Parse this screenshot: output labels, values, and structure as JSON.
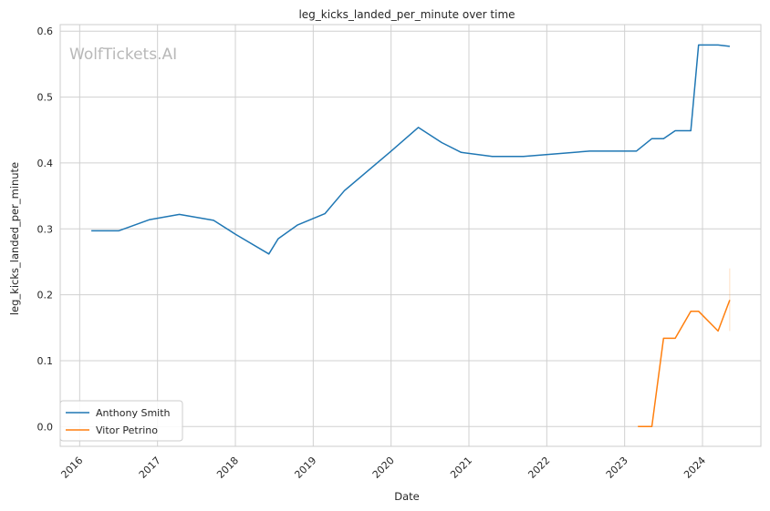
{
  "chart_data": {
    "type": "line",
    "title": "leg_kicks_landed_per_minute over time",
    "xlabel": "Date",
    "ylabel": "leg_kicks_landed_per_minute",
    "watermark": "WolfTickets.AI",
    "xlim": [
      2015.75,
      2024.75
    ],
    "ylim": [
      -0.03,
      0.61
    ],
    "x_ticks": [
      2016,
      2017,
      2018,
      2019,
      2020,
      2021,
      2022,
      2023,
      2024
    ],
    "x_tick_labels": [
      "2016",
      "2017",
      "2018",
      "2019",
      "2020",
      "2021",
      "2022",
      "2023",
      "2024"
    ],
    "y_ticks": [
      0.0,
      0.1,
      0.2,
      0.3,
      0.4,
      0.5,
      0.6
    ],
    "y_tick_labels": [
      "0.0",
      "0.1",
      "0.2",
      "0.3",
      "0.4",
      "0.5",
      "0.6"
    ],
    "grid": true,
    "legend_position": "bottom-left",
    "series": [
      {
        "name": "Anthony Smith",
        "color": "#1f77b4",
        "points": [
          [
            2016.15,
            0.297
          ],
          [
            2016.5,
            0.297
          ],
          [
            2016.9,
            0.314
          ],
          [
            2017.28,
            0.322
          ],
          [
            2017.72,
            0.313
          ],
          [
            2018.0,
            0.292
          ],
          [
            2018.43,
            0.262
          ],
          [
            2018.55,
            0.285
          ],
          [
            2018.8,
            0.306
          ],
          [
            2019.15,
            0.323
          ],
          [
            2019.4,
            0.358
          ],
          [
            2020.0,
            0.418
          ],
          [
            2020.35,
            0.454
          ],
          [
            2020.65,
            0.431
          ],
          [
            2020.9,
            0.416
          ],
          [
            2021.3,
            0.41
          ],
          [
            2021.7,
            0.41
          ],
          [
            2022.55,
            0.418
          ],
          [
            2023.15,
            0.418
          ],
          [
            2023.35,
            0.437
          ],
          [
            2023.5,
            0.437
          ],
          [
            2023.65,
            0.449
          ],
          [
            2023.85,
            0.449
          ],
          [
            2023.95,
            0.579
          ],
          [
            2024.2,
            0.579
          ],
          [
            2024.35,
            0.577
          ]
        ]
      },
      {
        "name": "Vitor Petrino",
        "color": "#ff7f0e",
        "points": [
          [
            2023.17,
            0.0
          ],
          [
            2023.35,
            0.0
          ],
          [
            2023.5,
            0.134
          ],
          [
            2023.65,
            0.134
          ],
          [
            2023.85,
            0.175
          ],
          [
            2023.95,
            0.175
          ],
          [
            2024.2,
            0.145
          ],
          [
            2024.35,
            0.192
          ]
        ],
        "error_band": {
          "x": 2024.35,
          "low": 0.145,
          "high": 0.24
        }
      }
    ]
  }
}
